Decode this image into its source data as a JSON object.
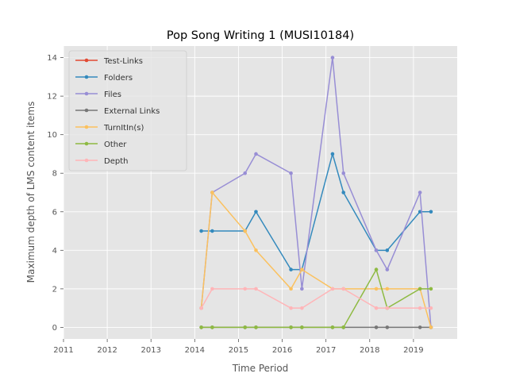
{
  "chart_data": {
    "type": "line",
    "title": "Pop Song Writing 1 (MUSI10184)",
    "xlabel": "Time Period",
    "ylabel": "Maximum depth of LMS content items",
    "xlim": [
      2011,
      2020
    ],
    "ylim": [
      -0.6,
      14.6
    ],
    "xticks": [
      2011,
      2012,
      2013,
      2014,
      2015,
      2016,
      2017,
      2018,
      2019
    ],
    "yticks": [
      0,
      2,
      4,
      6,
      8,
      10,
      12,
      14
    ],
    "grid": true,
    "legend_position": "top-left",
    "x": [
      2014.15,
      2014.4,
      2015.15,
      2015.4,
      2016.2,
      2016.45,
      2017.15,
      2017.4,
      2018.15,
      2018.4,
      2019.15,
      2019.4
    ],
    "series": [
      {
        "name": "Test-Links",
        "color": "#E24A33",
        "values": [
          null,
          null,
          null,
          null,
          null,
          null,
          null,
          null,
          null,
          null,
          null,
          null
        ]
      },
      {
        "name": "Folders",
        "color": "#348ABD",
        "values": [
          5,
          5,
          5,
          6,
          3,
          3,
          9,
          7,
          4,
          4,
          6,
          6
        ]
      },
      {
        "name": "Files",
        "color": "#988ED5",
        "values": [
          1,
          7,
          8,
          9,
          8,
          2,
          14,
          8,
          4,
          3,
          7,
          0
        ]
      },
      {
        "name": "External Links",
        "color": "#777777",
        "values": [
          0,
          0,
          0,
          0,
          0,
          0,
          0,
          0,
          0,
          0,
          0,
          0
        ]
      },
      {
        "name": "TurnItIn(s)",
        "color": "#FBC15E",
        "values": [
          1,
          7,
          5,
          4,
          2,
          3,
          2,
          2,
          2,
          2,
          2,
          0
        ]
      },
      {
        "name": "Other",
        "color": "#8EBA42",
        "values": [
          0,
          0,
          0,
          0,
          0,
          0,
          0,
          0,
          3,
          1,
          2,
          2
        ]
      },
      {
        "name": "Depth",
        "color": "#FFB5B8",
        "values": [
          1,
          2,
          2,
          2,
          1,
          1,
          2,
          2,
          1,
          1,
          1,
          1
        ]
      }
    ]
  }
}
